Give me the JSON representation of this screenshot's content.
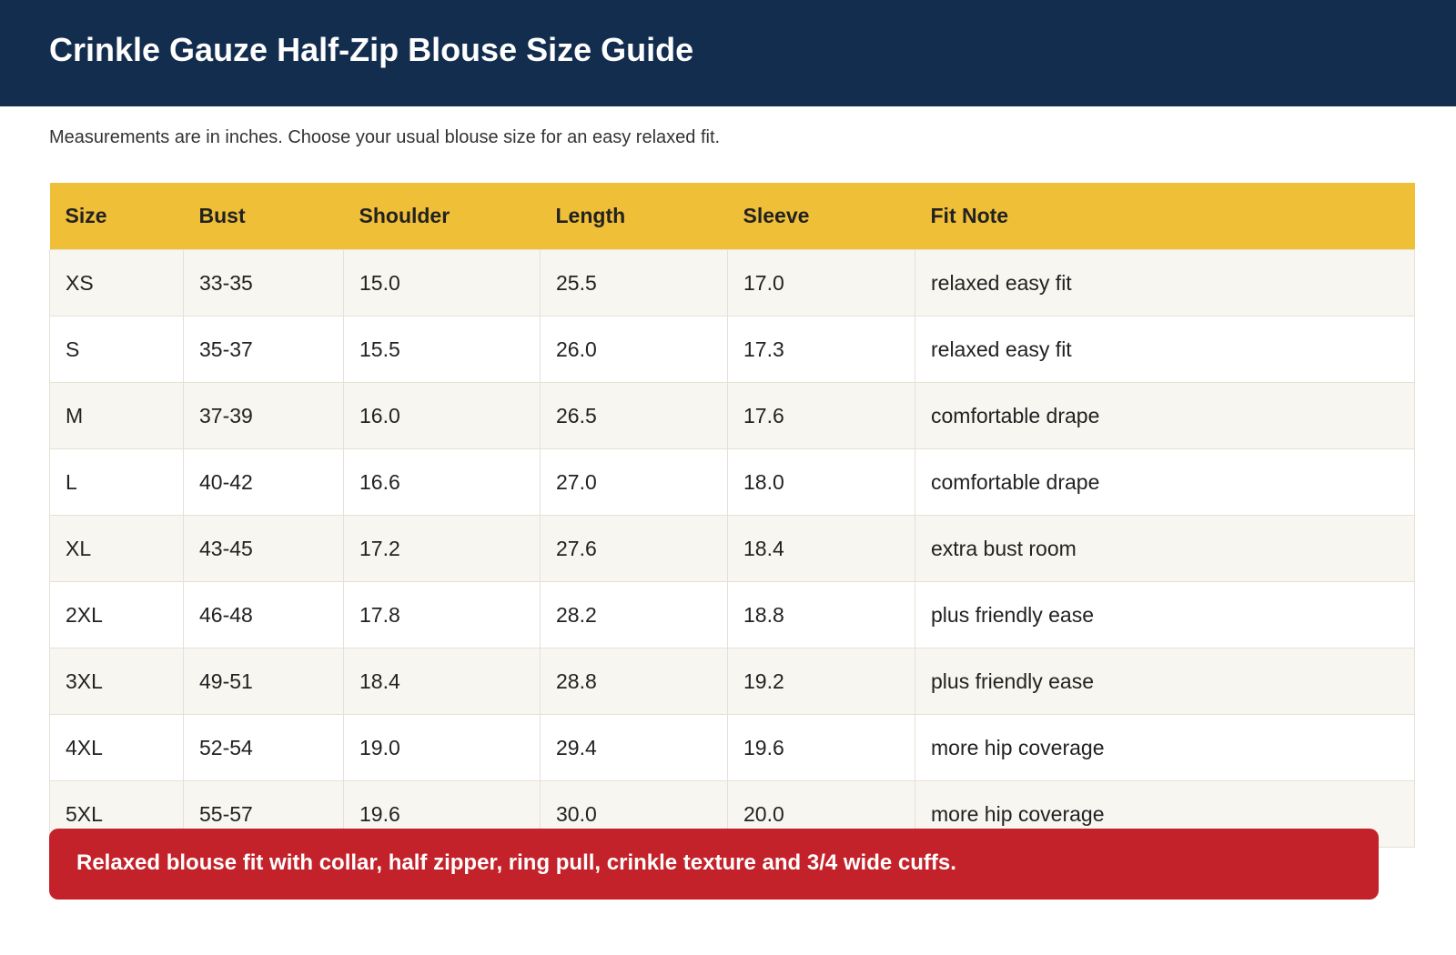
{
  "header": {
    "title": "Crinkle Gauze Half-Zip Blouse Size Guide"
  },
  "subtitle": "Measurements are in inches. Choose your usual blouse size for an easy relaxed fit.",
  "table": {
    "columns": [
      "Size",
      "Bust",
      "Shoulder",
      "Length",
      "Sleeve",
      "Fit Note"
    ],
    "rows": [
      [
        "XS",
        "33-35",
        "15.0",
        "25.5",
        "17.0",
        "relaxed easy fit"
      ],
      [
        "S",
        "35-37",
        "15.5",
        "26.0",
        "17.3",
        "relaxed easy fit"
      ],
      [
        "M",
        "37-39",
        "16.0",
        "26.5",
        "17.6",
        "comfortable drape"
      ],
      [
        "L",
        "40-42",
        "16.6",
        "27.0",
        "18.0",
        "comfortable drape"
      ],
      [
        "XL",
        "43-45",
        "17.2",
        "27.6",
        "18.4",
        "extra bust room"
      ],
      [
        "2XL",
        "46-48",
        "17.8",
        "28.2",
        "18.8",
        "plus friendly ease"
      ],
      [
        "3XL",
        "49-51",
        "18.4",
        "28.8",
        "19.2",
        "plus friendly ease"
      ],
      [
        "4XL",
        "52-54",
        "19.0",
        "29.4",
        "19.6",
        "more hip coverage"
      ],
      [
        "5XL",
        "55-57",
        "19.6",
        "30.0",
        "20.0",
        "more hip coverage"
      ]
    ]
  },
  "banner": "Relaxed blouse fit with collar, half zipper, ring pull, crinkle texture and 3/4 wide cuffs."
}
